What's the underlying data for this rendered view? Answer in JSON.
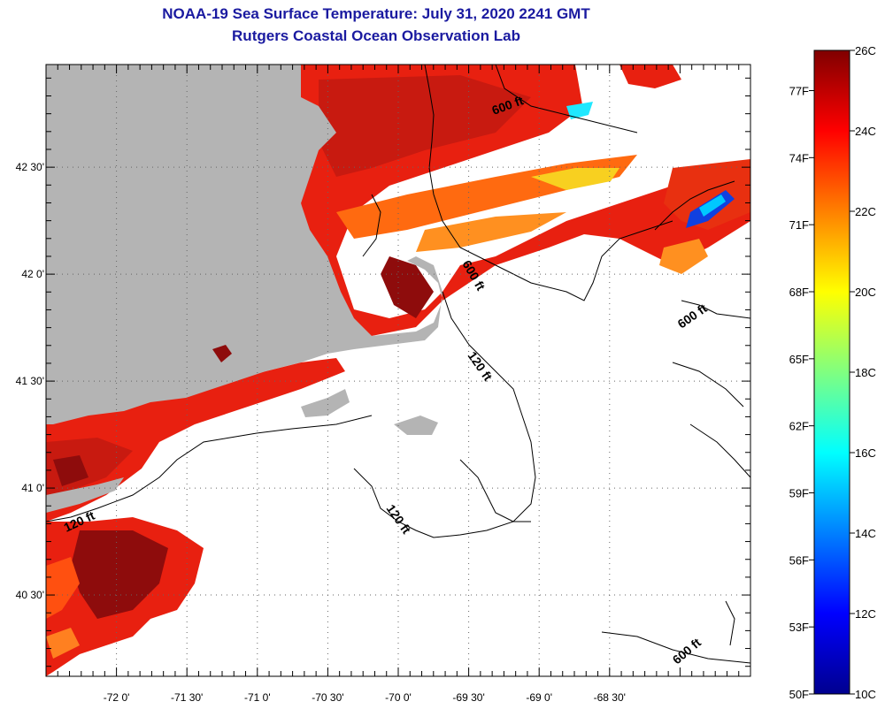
{
  "header": {
    "title": "NOAA-19 Sea Surface Temperature:  July 31, 2020 2241 GMT",
    "subtitle": "Rutgers Coastal Ocean Observation Lab"
  },
  "map": {
    "lon_range": [
      -72.5,
      -67.5
    ],
    "lat_range": [
      40.12,
      42.98
    ],
    "lon_ticks": [
      {
        "value": -72.0,
        "label": "-72 0'"
      },
      {
        "value": -71.5,
        "label": "-71 30'"
      },
      {
        "value": -71.0,
        "label": "-71 0'"
      },
      {
        "value": -70.5,
        "label": "-70 30'"
      },
      {
        "value": -70.0,
        "label": "-70 0'"
      },
      {
        "value": -69.5,
        "label": "-69 30'"
      },
      {
        "value": -69.0,
        "label": "-69 0'"
      },
      {
        "value": -68.5,
        "label": "-68 30'"
      }
    ],
    "lat_ticks": [
      {
        "value": 42.5,
        "label": "42 30'"
      },
      {
        "value": 42.0,
        "label": "42 0'"
      },
      {
        "value": 41.5,
        "label": "41 30'"
      },
      {
        "value": 41.0,
        "label": "41 0'"
      },
      {
        "value": 40.5,
        "label": "40 30'"
      }
    ],
    "contour_labels": [
      {
        "text": "600 ft",
        "name": "contour-label-600-north"
      },
      {
        "text": "600 ft",
        "name": "contour-label-600-middle"
      },
      {
        "text": "600 ft",
        "name": "contour-label-600-east"
      },
      {
        "text": "600 ft",
        "name": "contour-label-600-south"
      },
      {
        "text": "120 ft",
        "name": "contour-label-120-nantucket"
      },
      {
        "text": "120 ft",
        "name": "contour-label-120-shoals"
      },
      {
        "text": "120 ft",
        "name": "contour-label-120-west"
      }
    ],
    "colors": {
      "land": "#b4b4b4",
      "cloud": "#ffffff",
      "ocean_warm": "#e82010",
      "ocean_hot": "#8e0c0c"
    }
  },
  "colorbar": {
    "min_c": 10,
    "max_c": 26,
    "celsius_labels": [
      "26C",
      "24C",
      "22C",
      "20C",
      "18C",
      "16C",
      "14C",
      "12C",
      "10C"
    ],
    "fahrenheit_labels": [
      "77F",
      "74F",
      "71F",
      "68F",
      "65F",
      "62F",
      "59F",
      "56F",
      "53F",
      "50F"
    ],
    "colormap": [
      "#00008f",
      "#0000ff",
      "#0080ff",
      "#00ffff",
      "#80ff80",
      "#ffff00",
      "#ff8000",
      "#ff0000",
      "#800000"
    ]
  }
}
